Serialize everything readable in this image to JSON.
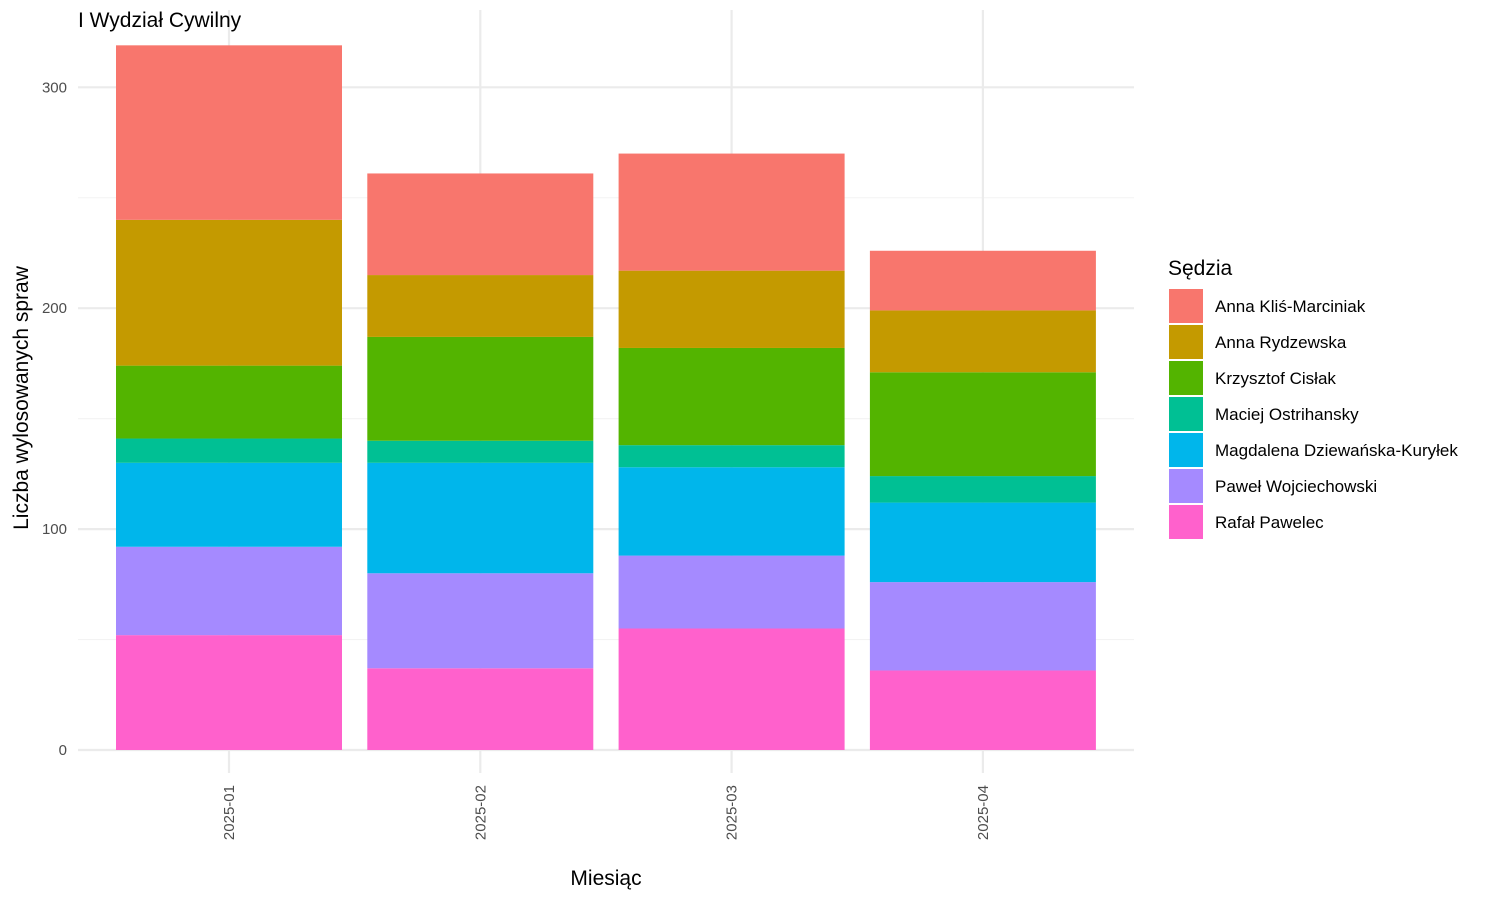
{
  "chart_data": {
    "type": "bar",
    "stacked": true,
    "title": "I Wydział Cywilny",
    "xlabel": "Miesiąc",
    "ylabel": "Liczba wylosowanych spraw",
    "categories": [
      "2025-01",
      "2025-02",
      "2025-03",
      "2025-04"
    ],
    "ylim": [
      0,
      320
    ],
    "yticks": [
      0,
      100,
      200,
      300
    ],
    "grid": true,
    "legend": {
      "title": "Sędzia",
      "position": "right"
    },
    "series": [
      {
        "name": "Rafał Pawelec",
        "color": "#FF61CC",
        "values": [
          52,
          37,
          55,
          36
        ]
      },
      {
        "name": "Paweł Wojciechowski",
        "color": "#A58AFF",
        "values": [
          40,
          43,
          33,
          40
        ]
      },
      {
        "name": "Magdalena Dziewańska-Kuryłek",
        "color": "#00B6EB",
        "values": [
          38,
          50,
          40,
          36
        ]
      },
      {
        "name": "Maciej Ostrihansky",
        "color": "#00C094",
        "values": [
          11,
          10,
          10,
          12
        ]
      },
      {
        "name": "Krzysztof Cisłak",
        "color": "#53B400",
        "values": [
          33,
          47,
          44,
          47
        ]
      },
      {
        "name": "Anna Rydzewska",
        "color": "#C49A00",
        "values": [
          66,
          28,
          35,
          28
        ]
      },
      {
        "name": "Anna Kliś-Marciniak",
        "color": "#F8766D",
        "values": [
          79,
          46,
          53,
          27
        ]
      }
    ],
    "legend_order": [
      "Anna Kliś-Marciniak",
      "Anna Rydzewska",
      "Krzysztof Cisłak",
      "Maciej Ostrihansky",
      "Magdalena Dziewańska-Kuryłek",
      "Paweł Wojciechowski",
      "Rafał Pawelec"
    ]
  }
}
